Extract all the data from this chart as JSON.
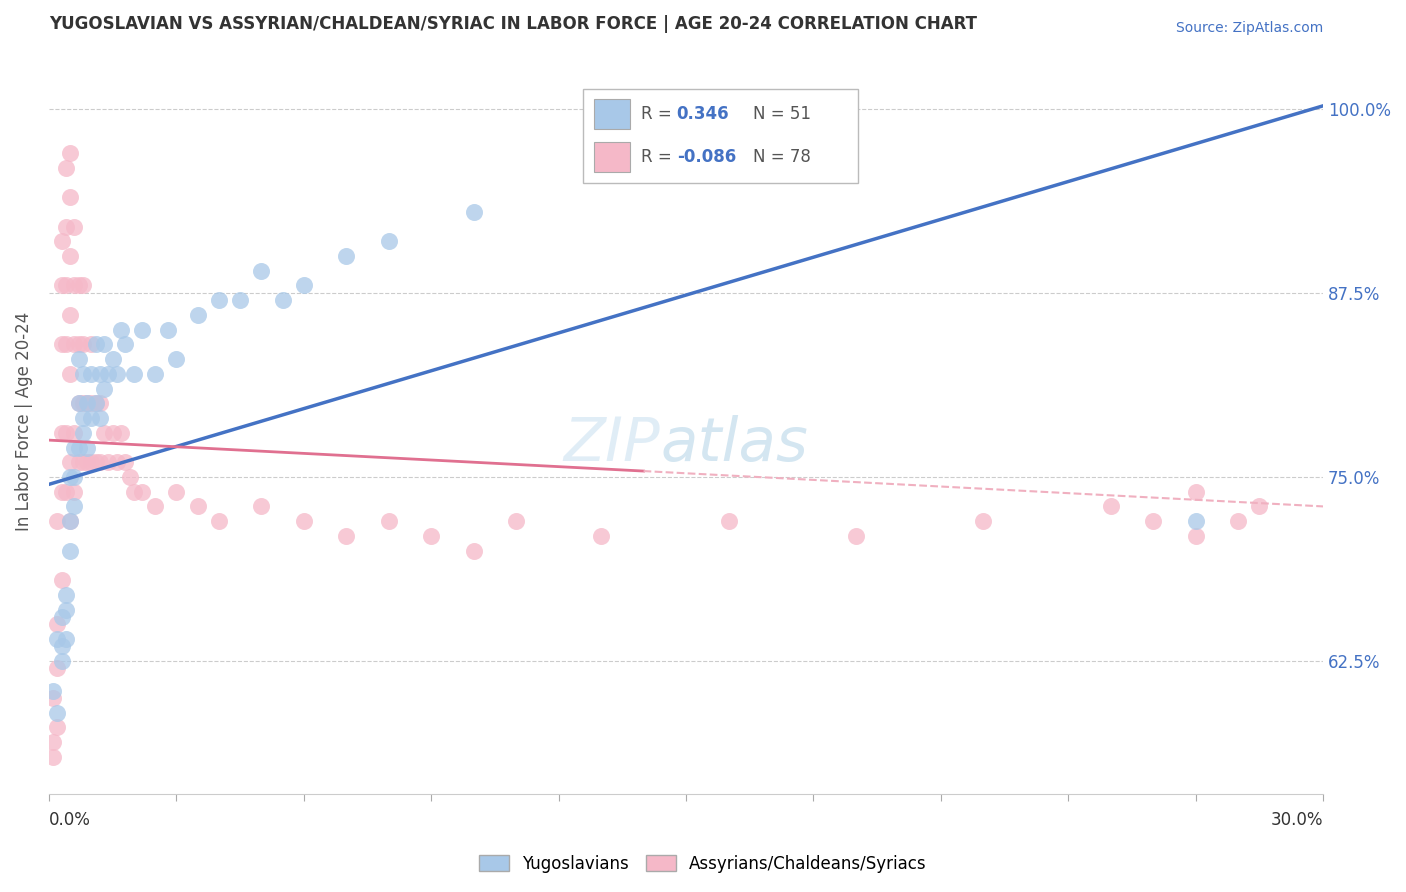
{
  "title": "YUGOSLAVIAN VS ASSYRIAN/CHALDEAN/SYRIAC IN LABOR FORCE | AGE 20-24 CORRELATION CHART",
  "source": "Source: ZipAtlas.com",
  "ylabel": "In Labor Force | Age 20-24",
  "yticks_labels": [
    "62.5%",
    "75.0%",
    "87.5%",
    "100.0%"
  ],
  "ytick_vals": [
    0.625,
    0.75,
    0.875,
    1.0
  ],
  "xmin": 0.0,
  "xmax": 0.3,
  "ymin": 0.535,
  "ymax": 1.04,
  "blue_R": "0.346",
  "blue_N": "51",
  "pink_R": "-0.086",
  "pink_N": "78",
  "blue_dot_color": "#a8c8e8",
  "pink_dot_color": "#f5b8c8",
  "blue_line_color": "#4472c4",
  "pink_line_color": "#e07090",
  "pink_dash_color": "#f0b0c0",
  "legend_label_blue": "Yugoslavians",
  "legend_label_pink": "Assyrians/Chaldeans/Syriacs",
  "watermark_text": "ZIP",
  "watermark_text2": "atlas",
  "blue_scatter_x": [
    0.001,
    0.002,
    0.002,
    0.003,
    0.003,
    0.003,
    0.004,
    0.004,
    0.004,
    0.005,
    0.005,
    0.005,
    0.006,
    0.006,
    0.006,
    0.007,
    0.007,
    0.007,
    0.008,
    0.008,
    0.008,
    0.009,
    0.009,
    0.01,
    0.01,
    0.011,
    0.011,
    0.012,
    0.012,
    0.013,
    0.013,
    0.014,
    0.015,
    0.016,
    0.017,
    0.018,
    0.02,
    0.022,
    0.025,
    0.028,
    0.03,
    0.035,
    0.04,
    0.045,
    0.05,
    0.055,
    0.06,
    0.07,
    0.08,
    0.1,
    0.27
  ],
  "blue_scatter_y": [
    0.605,
    0.64,
    0.59,
    0.625,
    0.655,
    0.635,
    0.64,
    0.67,
    0.66,
    0.72,
    0.75,
    0.7,
    0.75,
    0.77,
    0.73,
    0.8,
    0.83,
    0.77,
    0.78,
    0.82,
    0.79,
    0.8,
    0.77,
    0.82,
    0.79,
    0.8,
    0.84,
    0.82,
    0.79,
    0.81,
    0.84,
    0.82,
    0.83,
    0.82,
    0.85,
    0.84,
    0.82,
    0.85,
    0.82,
    0.85,
    0.83,
    0.86,
    0.87,
    0.87,
    0.89,
    0.87,
    0.88,
    0.9,
    0.91,
    0.93,
    0.72
  ],
  "pink_scatter_x": [
    0.001,
    0.001,
    0.001,
    0.002,
    0.002,
    0.002,
    0.002,
    0.003,
    0.003,
    0.003,
    0.003,
    0.003,
    0.003,
    0.004,
    0.004,
    0.004,
    0.004,
    0.004,
    0.004,
    0.005,
    0.005,
    0.005,
    0.005,
    0.005,
    0.005,
    0.005,
    0.006,
    0.006,
    0.006,
    0.006,
    0.006,
    0.007,
    0.007,
    0.007,
    0.007,
    0.008,
    0.008,
    0.008,
    0.008,
    0.009,
    0.009,
    0.01,
    0.01,
    0.01,
    0.011,
    0.011,
    0.012,
    0.012,
    0.013,
    0.014,
    0.015,
    0.016,
    0.017,
    0.018,
    0.019,
    0.02,
    0.022,
    0.025,
    0.03,
    0.035,
    0.04,
    0.05,
    0.06,
    0.07,
    0.08,
    0.09,
    0.1,
    0.11,
    0.13,
    0.16,
    0.19,
    0.22,
    0.25,
    0.26,
    0.27,
    0.27,
    0.28,
    0.285
  ],
  "pink_scatter_y": [
    0.57,
    0.6,
    0.56,
    0.62,
    0.65,
    0.58,
    0.72,
    0.68,
    0.74,
    0.78,
    0.84,
    0.88,
    0.91,
    0.74,
    0.78,
    0.84,
    0.88,
    0.92,
    0.96,
    0.72,
    0.76,
    0.82,
    0.86,
    0.9,
    0.94,
    0.97,
    0.74,
    0.78,
    0.84,
    0.88,
    0.92,
    0.76,
    0.8,
    0.84,
    0.88,
    0.76,
    0.8,
    0.84,
    0.88,
    0.76,
    0.8,
    0.76,
    0.8,
    0.84,
    0.76,
    0.8,
    0.76,
    0.8,
    0.78,
    0.76,
    0.78,
    0.76,
    0.78,
    0.76,
    0.75,
    0.74,
    0.74,
    0.73,
    0.74,
    0.73,
    0.72,
    0.73,
    0.72,
    0.71,
    0.72,
    0.71,
    0.7,
    0.72,
    0.71,
    0.72,
    0.71,
    0.72,
    0.73,
    0.72,
    0.71,
    0.74,
    0.72,
    0.73
  ]
}
